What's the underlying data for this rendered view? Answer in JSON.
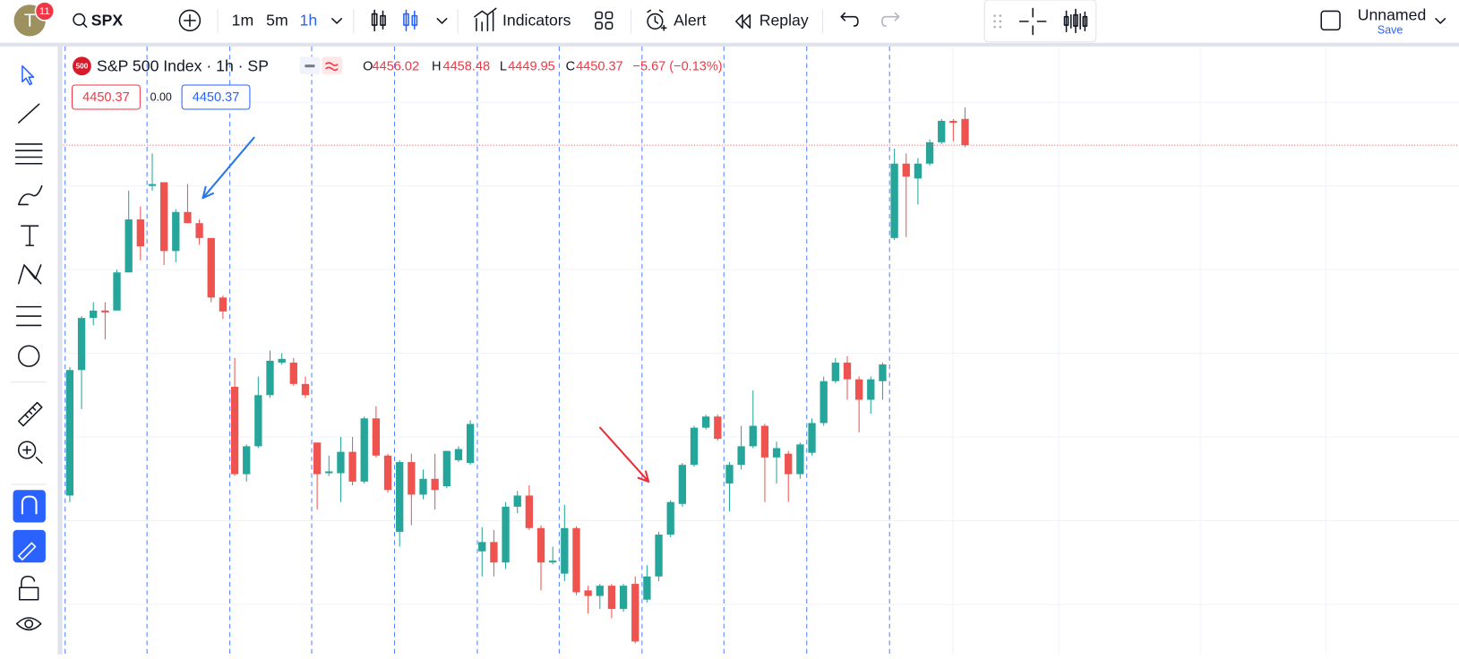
{
  "toolbar": {
    "avatar": "T",
    "badge": "11",
    "symbol": "SPX",
    "intervals": [
      "1m",
      "5m",
      "1h"
    ],
    "indicators": "Indicators",
    "alert": "Alert",
    "replay": "Replay",
    "layout_name": "Unnamed",
    "save": "Save"
  },
  "legend": {
    "badge": "500",
    "labels": [
      "O",
      "H",
      "L",
      "C"
    ],
    "change": "−5.67 (−0.13%)",
    "spread": "0.00"
  },
  "chart_data": {
    "type": "candlestick",
    "title": "S&P 500 Index · 1h · SP",
    "up_color": "#26a69a",
    "down_color": "#ef5350",
    "ylim": [
      4340.8,
      4471.6
    ],
    "open": [
      4375.0,
      4402.0,
      4413.2,
      4414.8,
      4414.8,
      4423.0,
      4434.4,
      4441.6,
      4442.4,
      4427.6,
      4436.0,
      4433.6,
      4430.4,
      4417.6,
      4398.4,
      4379.6,
      4385.6,
      4396.6,
      4403.6,
      4403.6,
      4399.0,
      4386.4,
      4379.8,
      4379.8,
      4384.4,
      4378.0,
      4391.6,
      4383.6,
      4367.2,
      4382.2,
      4375.2,
      4378.6,
      4377.0,
      4382.6,
      4382.0,
      4363.0,
      4365.0,
      4360.6,
      4372.6,
      4375.0,
      4368.0,
      4360.6,
      4358.2,
      4368.0,
      4354.6,
      4353.4,
      4355.6,
      4350.6,
      4356.0,
      4352.6,
      4357.6,
      4366.6,
      4373.2,
      4381.6,
      4389.6,
      4392.0,
      4377.6,
      4381.6,
      4385.6,
      4390.0,
      4383.2,
      4384.0,
      4379.6,
      4384.2,
      4390.6,
      4399.6,
      4403.6,
      4400.0,
      4395.6,
      4399.6,
      4430.4,
      4446.4,
      4443.2,
      4446.4,
      4451.0,
      4455.6,
      4456.02
    ],
    "high": [
      4402.6,
      4413.6,
      4416.6,
      4416.6,
      4423.6,
      4440.6,
      4437.2,
      4448.6,
      4442.4,
      4436.6,
      4442.0,
      4434.4,
      4430.4,
      4418.0,
      4404.6,
      4386.0,
      4400.6,
      4406.2,
      4405.6,
      4404.6,
      4400.6,
      4386.4,
      4383.6,
      4387.6,
      4387.6,
      4392.0,
      4394.2,
      4384.0,
      4382.6,
      4384.0,
      4380.6,
      4384.0,
      4384.6,
      4385.6,
      4391.2,
      4368.2,
      4367.6,
      4373.6,
      4376.0,
      4377.2,
      4368.6,
      4364.0,
      4373.0,
      4368.4,
      4355.6,
      4356.0,
      4356.0,
      4356.0,
      4357.6,
      4360.0,
      4367.2,
      4374.0,
      4382.0,
      4390.0,
      4392.4,
      4392.4,
      4382.2,
      4390.0,
      4397.6,
      4390.4,
      4386.6,
      4384.6,
      4386.4,
      4391.6,
      4400.6,
      4404.6,
      4405.0,
      4400.6,
      4400.6,
      4403.6,
      4449.6,
      4448.6,
      4447.6,
      4451.6,
      4456.0,
      4456.0,
      4458.48
    ],
    "low": [
      4373.6,
      4393.6,
      4411.6,
      4408.6,
      4414.8,
      4423.0,
      4425.6,
      4440.6,
      4424.6,
      4425.2,
      4433.6,
      4429.0,
      4416.6,
      4413.0,
      4379.2,
      4378.0,
      4385.2,
      4396.0,
      4403.2,
      4398.6,
      4396.0,
      4372.0,
      4379.2,
      4373.6,
      4377.2,
      4377.6,
      4383.2,
      4375.6,
      4364.0,
      4368.6,
      4374.2,
      4372.0,
      4376.6,
      4382.2,
      4381.6,
      4357.6,
      4357.6,
      4359.2,
      4371.2,
      4367.6,
      4354.6,
      4360.2,
      4356.6,
      4353.6,
      4349.6,
      4350.6,
      4348.6,
      4350.0,
      4343.2,
      4352.0,
      4356.6,
      4366.0,
      4372.6,
      4381.2,
      4389.2,
      4386.8,
      4371.6,
      4380.6,
      4385.2,
      4373.6,
      4377.6,
      4373.6,
      4378.6,
      4383.6,
      4390.0,
      4399.2,
      4395.6,
      4388.6,
      4392.6,
      4395.6,
      4430.0,
      4430.6,
      4437.6,
      4446.0,
      4450.6,
      4451.2,
      4449.95
    ],
    "close": [
      4402.0,
      4413.2,
      4414.8,
      4414.4,
      4423.0,
      4434.4,
      4428.6,
      4442.0,
      4427.6,
      4436.0,
      4433.6,
      4430.4,
      4417.6,
      4414.6,
      4379.6,
      4385.6,
      4396.6,
      4404.0,
      4404.4,
      4399.0,
      4396.6,
      4379.6,
      4380.2,
      4384.4,
      4378.0,
      4391.6,
      4383.6,
      4376.2,
      4382.2,
      4375.2,
      4378.6,
      4376.2,
      4384.6,
      4385.0,
      4390.4,
      4365.0,
      4360.6,
      4372.6,
      4375.0,
      4368.0,
      4360.6,
      4361.0,
      4368.0,
      4354.2,
      4353.4,
      4355.6,
      4350.6,
      4355.6,
      4343.6,
      4357.6,
      4366.6,
      4373.6,
      4381.6,
      4389.6,
      4392.0,
      4387.2,
      4381.6,
      4385.6,
      4390.0,
      4383.2,
      4385.2,
      4379.6,
      4386.0,
      4390.6,
      4399.6,
      4403.6,
      4400.0,
      4395.6,
      4400.0,
      4403.2,
      4446.4,
      4443.6,
      4446.4,
      4451.0,
      4455.6,
      4455.2,
      4450.37
    ]
  }
}
